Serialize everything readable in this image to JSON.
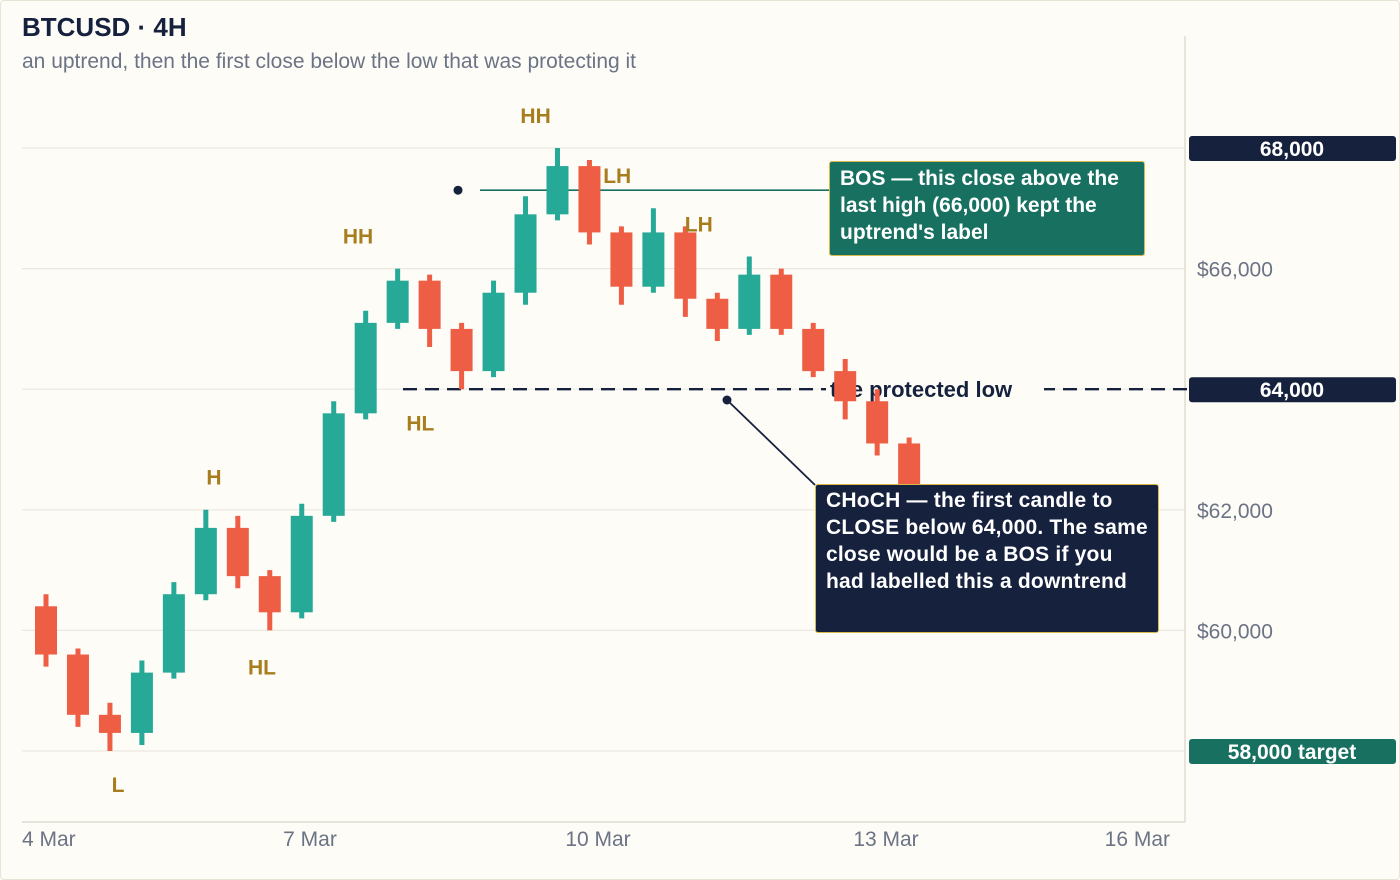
{
  "header": {
    "title": "BTCUSD · 4H",
    "subtitle": "an uptrend, then the first close below the low that was protecting it"
  },
  "colors": {
    "up": "#26a996",
    "down": "#ee5e45",
    "navy": "#16213e",
    "teal": "#177060",
    "gold": "#a77d1e",
    "grid": "#ebe8df",
    "axis_text": "#6b7385"
  },
  "chart_data": {
    "type": "candlestick",
    "title": "BTCUSD · 4H",
    "subtitle": "an uptrend, then the first close below the low that was protecting it",
    "ylim": [
      57000,
      69500
    ],
    "y_ticks": [
      {
        "value": 60000,
        "label": "$60,000"
      },
      {
        "value": 62000,
        "label": "$62,000"
      },
      {
        "value": 66000,
        "label": "$66,000"
      }
    ],
    "y_gridlines": [
      58000,
      60000,
      62000,
      64000,
      66000,
      68000
    ],
    "x_ticks": [
      {
        "value": 0,
        "label": "4 Mar"
      },
      {
        "value": 3,
        "label": "7 Mar"
      },
      {
        "value": 6,
        "label": "10 Mar"
      },
      {
        "value": 9,
        "label": "13 Mar"
      },
      {
        "value": 12,
        "label": "16 Mar"
      }
    ],
    "x_unit": "days from 4 Mar",
    "candle_spacing_days": 0.333,
    "candles": [
      {
        "o": 60400,
        "h": 60600,
        "l": 59400,
        "c": 59600
      },
      {
        "o": 59600,
        "h": 59700,
        "l": 58400,
        "c": 58600
      },
      {
        "o": 58600,
        "h": 58800,
        "l": 58000,
        "c": 58300
      },
      {
        "o": 58300,
        "h": 59500,
        "l": 58100,
        "c": 59300
      },
      {
        "o": 59300,
        "h": 60800,
        "l": 59200,
        "c": 60600
      },
      {
        "o": 60600,
        "h": 62000,
        "l": 60500,
        "c": 61700
      },
      {
        "o": 61700,
        "h": 61900,
        "l": 60700,
        "c": 60900
      },
      {
        "o": 60900,
        "h": 61000,
        "l": 60000,
        "c": 60300
      },
      {
        "o": 60300,
        "h": 62100,
        "l": 60200,
        "c": 61900
      },
      {
        "o": 61900,
        "h": 63800,
        "l": 61800,
        "c": 63600
      },
      {
        "o": 63600,
        "h": 65300,
        "l": 63500,
        "c": 65100
      },
      {
        "o": 65100,
        "h": 66000,
        "l": 65000,
        "c": 65800
      },
      {
        "o": 65800,
        "h": 65900,
        "l": 64700,
        "c": 65000
      },
      {
        "o": 65000,
        "h": 65100,
        "l": 64000,
        "c": 64300
      },
      {
        "o": 64300,
        "h": 65800,
        "l": 64200,
        "c": 65600
      },
      {
        "o": 65600,
        "h": 67200,
        "l": 65400,
        "c": 66900
      },
      {
        "o": 66900,
        "h": 68000,
        "l": 66800,
        "c": 67700
      },
      {
        "o": 67700,
        "h": 67800,
        "l": 66400,
        "c": 66600
      },
      {
        "o": 66600,
        "h": 66700,
        "l": 65400,
        "c": 65700
      },
      {
        "o": 65700,
        "h": 67000,
        "l": 65600,
        "c": 66600
      },
      {
        "o": 66600,
        "h": 66700,
        "l": 65200,
        "c": 65500
      },
      {
        "o": 65500,
        "h": 65600,
        "l": 64800,
        "c": 65000
      },
      {
        "o": 65000,
        "h": 66200,
        "l": 64900,
        "c": 65900
      },
      {
        "o": 65900,
        "h": 66000,
        "l": 64900,
        "c": 65000
      },
      {
        "o": 65000,
        "h": 65100,
        "l": 64200,
        "c": 64300
      },
      {
        "o": 64300,
        "h": 64500,
        "l": 63500,
        "c": 63800
      },
      {
        "o": 63800,
        "h": 64000,
        "l": 62900,
        "c": 63100
      },
      {
        "o": 63100,
        "h": 63200,
        "l": 62100,
        "c": 62400
      }
    ],
    "swing_labels": [
      {
        "text": "L",
        "x": 1.0,
        "y": 57450
      },
      {
        "text": "H",
        "x": 2.0,
        "y": 62550
      },
      {
        "text": "HL",
        "x": 2.5,
        "y": 59400
      },
      {
        "text": "HH",
        "x": 3.5,
        "y": 66550
      },
      {
        "text": "HL",
        "x": 4.15,
        "y": 63450
      },
      {
        "text": "HH",
        "x": 5.35,
        "y": 68550
      },
      {
        "text": "LH",
        "x": 6.2,
        "y": 67550
      },
      {
        "text": "LH",
        "x": 7.05,
        "y": 66750
      }
    ],
    "levels": [
      {
        "value": 68000,
        "label": "68,000",
        "style": "navy"
      },
      {
        "value": 64000,
        "label": "64,000",
        "style": "navy",
        "line_label": "the protected low"
      },
      {
        "value": 58000,
        "label": "58,000 target",
        "style": "teal"
      }
    ],
    "annotations": [
      {
        "kind": "BOS",
        "text": "BOS — this close above the last high (66,000) kept the uptrend's label",
        "anchor_x": 5.0,
        "anchor_y": 66900
      },
      {
        "kind": "CHoCH",
        "text": "CHoCH — the first candle to CLOSE below 64,000. The same close would be a BOS if you had labelled this a downtrend",
        "anchor_x": 8.0,
        "anchor_y": 63800
      }
    ]
  }
}
